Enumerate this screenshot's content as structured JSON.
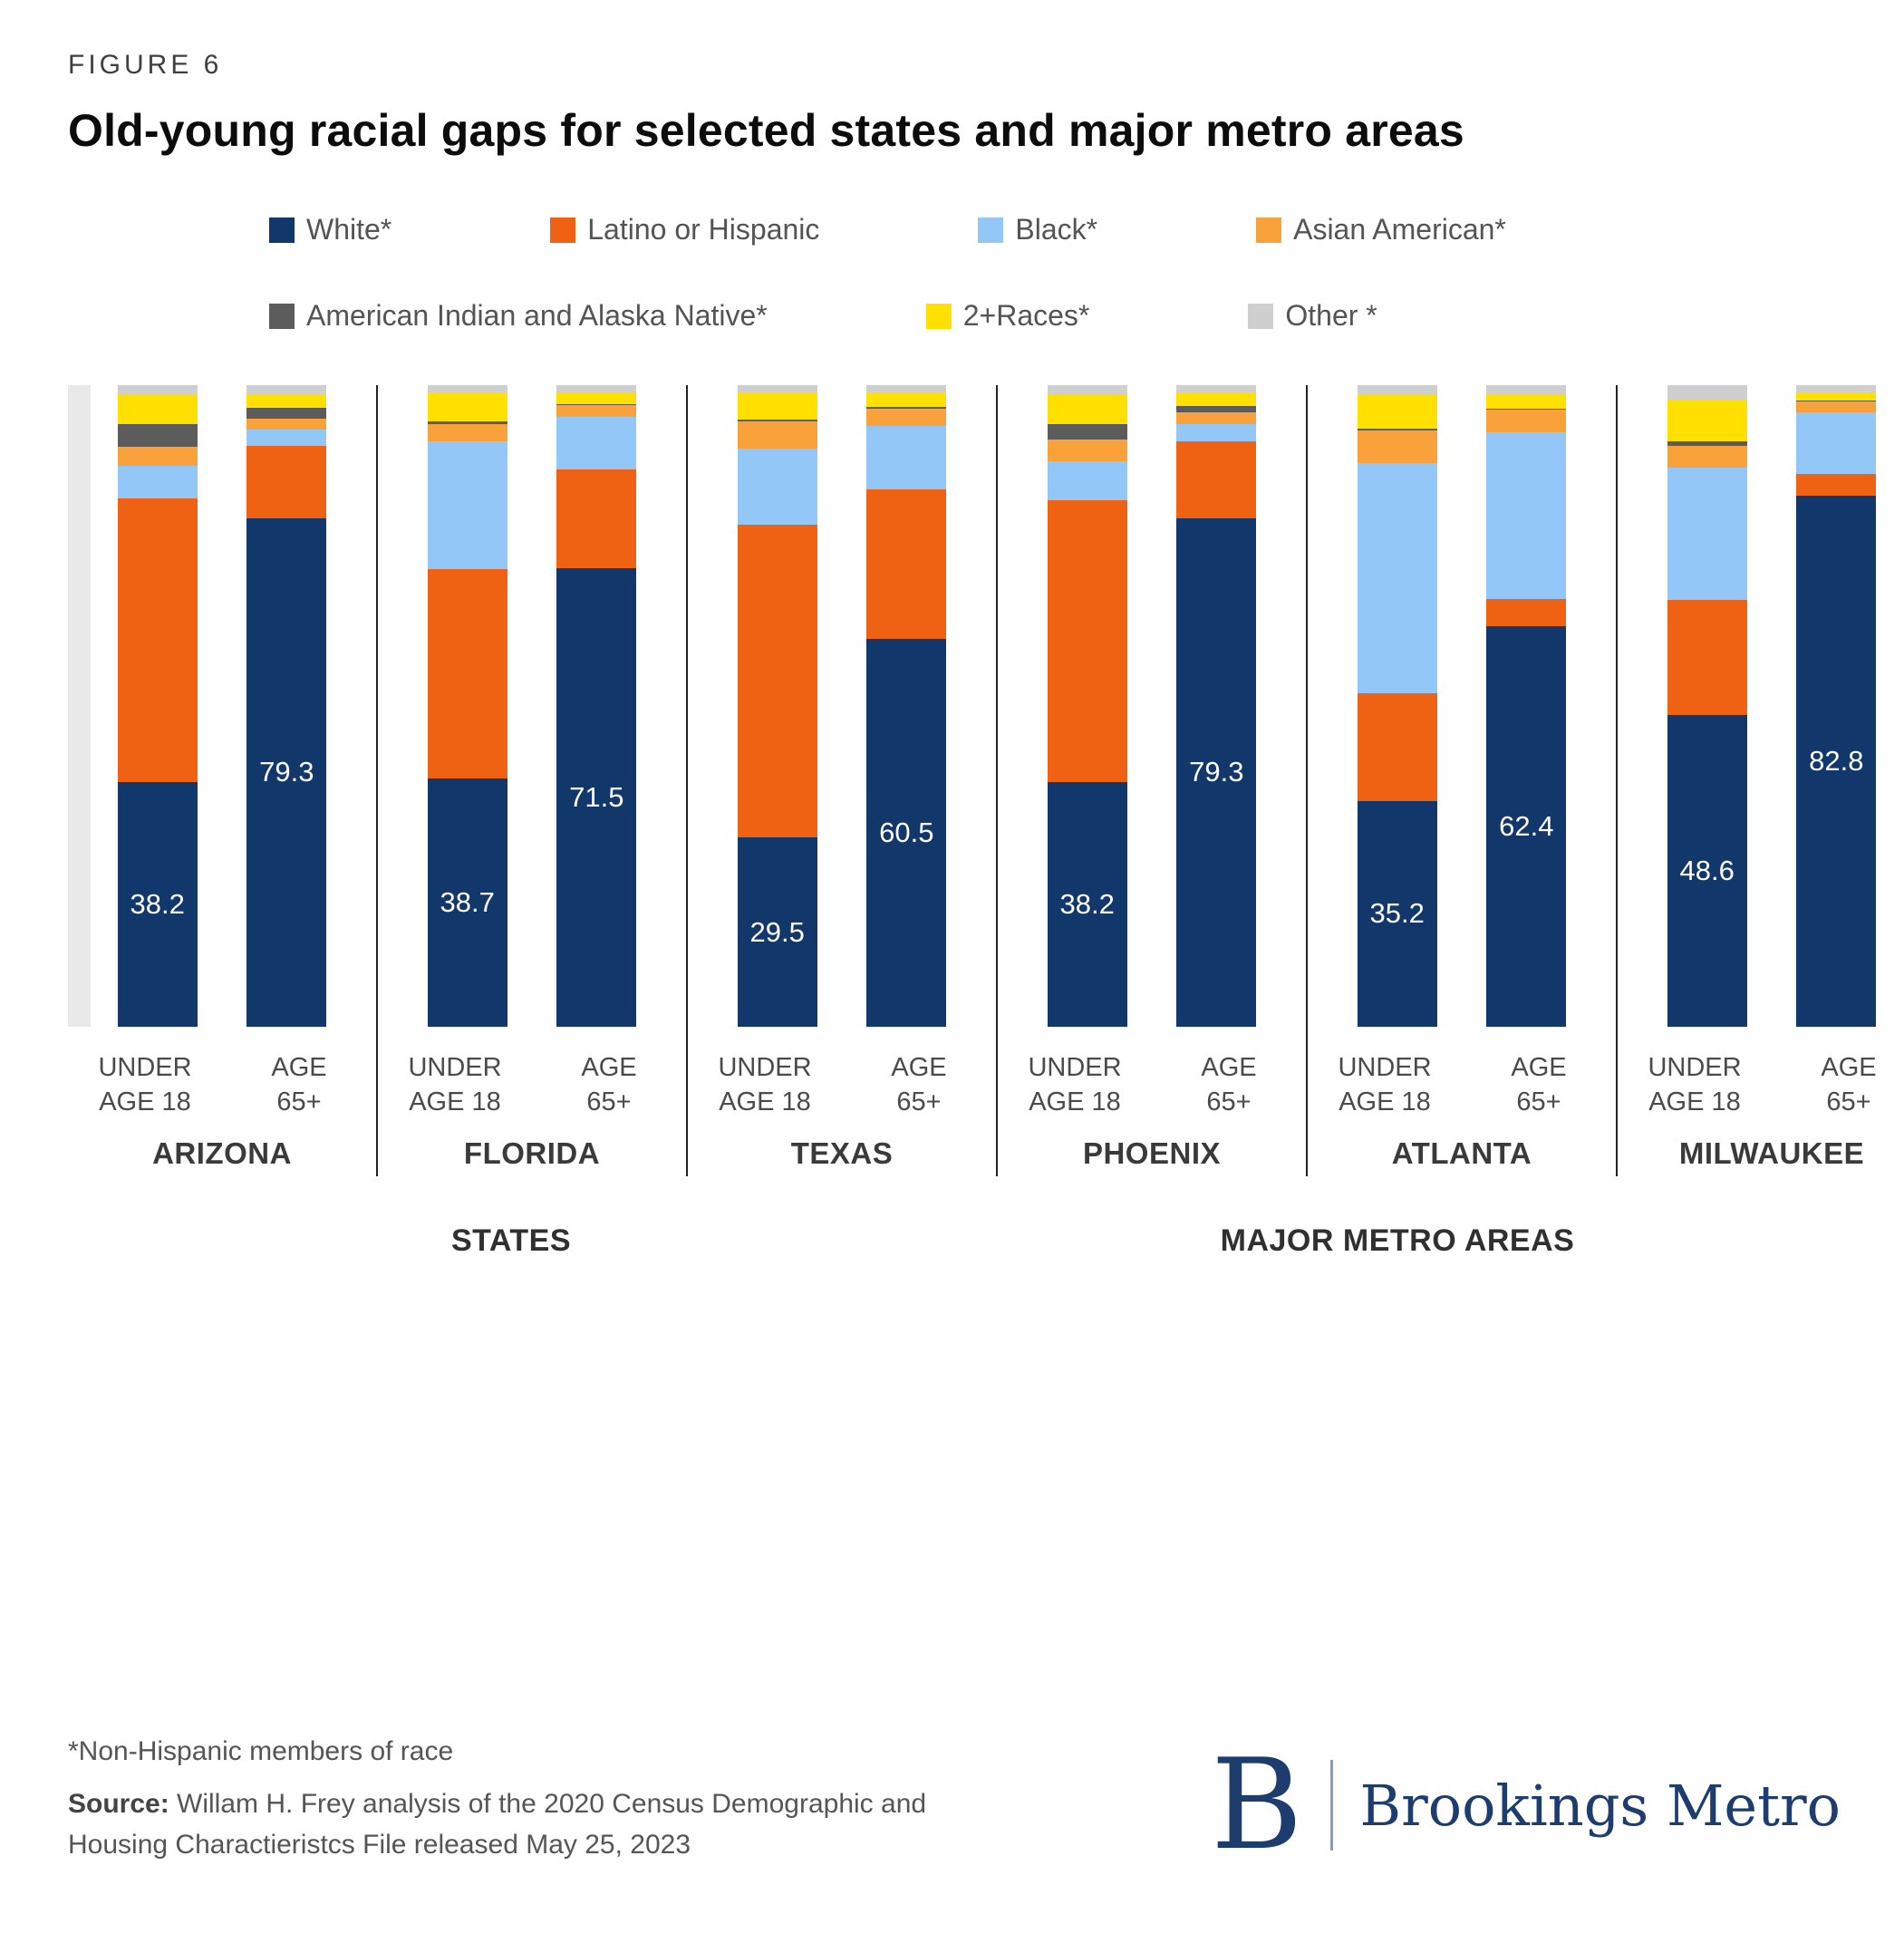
{
  "figure_label": "FIGURE 6",
  "title": "Old-young racial gaps for selected states and major metro areas",
  "footnote": "*Non-Hispanic members of race",
  "source_label": "Source:",
  "source_text": " Willam H. Frey analysis of the 2020 Census Demographic and Housing Charactieristcs File released May 25, 2023",
  "logo": {
    "mark": "B",
    "name": "Brookings Metro"
  },
  "chart_data": {
    "type": "bar",
    "stacked": true,
    "ylim": [
      0,
      100
    ],
    "grid": false,
    "legend_position": "top",
    "series": [
      {
        "name": "White*",
        "color": "#12386b"
      },
      {
        "name": "Latino or Hispanic",
        "color": "#ef6213"
      },
      {
        "name": "Black*",
        "color": "#92c7f8"
      },
      {
        "name": "Asian American*",
        "color": "#f9a13b"
      },
      {
        "name": "American Indian and Alaska Native*",
        "color": "#5c5c5c"
      },
      {
        "name": "2+Races*",
        "color": "#ffe000"
      },
      {
        "name": "Other *",
        "color": "#cfcfcf"
      }
    ],
    "legend_rows": [
      [
        0,
        1,
        2,
        3
      ],
      [
        4,
        5,
        6
      ]
    ],
    "sections": [
      {
        "label": "STATES",
        "groups": [
          "ARIZONA",
          "FLORIDA",
          "TEXAS"
        ]
      },
      {
        "label": "MAJOR METRO AREAS",
        "groups": [
          "PHOENIX",
          "ATLANTA",
          "MILWAUKEE"
        ]
      }
    ],
    "groups": [
      {
        "name": "ARIZONA",
        "bars": [
          {
            "tick": [
              "UNDER",
              "AGE 18"
            ],
            "label": "38.2",
            "values": [
              38.2,
              44.2,
              5.0,
              3.0,
              3.6,
              4.5,
              1.5
            ]
          },
          {
            "tick": [
              "AGE",
              "65+"
            ],
            "label": "79.3",
            "values": [
              79.3,
              11.3,
              2.5,
              1.7,
              1.7,
              2.0,
              1.5
            ]
          }
        ]
      },
      {
        "name": "FLORIDA",
        "bars": [
          {
            "tick": [
              "UNDER",
              "AGE 18"
            ],
            "label": "38.7",
            "values": [
              38.7,
              32.6,
              20.0,
              2.7,
              0.4,
              4.4,
              1.2
            ]
          },
          {
            "tick": [
              "AGE",
              "65+"
            ],
            "label": "71.5",
            "values": [
              71.5,
              15.4,
              8.2,
              1.8,
              0.2,
              1.7,
              1.2
            ]
          }
        ]
      },
      {
        "name": "TEXAS",
        "bars": [
          {
            "tick": [
              "UNDER",
              "AGE 18"
            ],
            "label": "29.5",
            "values": [
              29.5,
              48.8,
              11.8,
              4.3,
              0.3,
              4.2,
              1.1
            ]
          },
          {
            "tick": [
              "AGE",
              "65+"
            ],
            "label": "60.5",
            "values": [
              60.5,
              23.2,
              10.0,
              2.6,
              0.3,
              2.2,
              1.2
            ]
          }
        ]
      },
      {
        "name": "PHOENIX",
        "bars": [
          {
            "tick": [
              "UNDER",
              "AGE 18"
            ],
            "label": "38.2",
            "values": [
              38.2,
              43.8,
              6.2,
              3.4,
              2.4,
              4.5,
              1.5
            ]
          },
          {
            "tick": [
              "AGE",
              "65+"
            ],
            "label": "79.3",
            "values": [
              79.3,
              12.0,
              2.7,
              1.8,
              1.0,
              2.0,
              1.2
            ]
          }
        ]
      },
      {
        "name": "ATLANTA",
        "bars": [
          {
            "tick": [
              "UNDER",
              "AGE 18"
            ],
            "label": "35.2",
            "values": [
              35.2,
              16.8,
              35.8,
              5.2,
              0.2,
              5.4,
              1.4
            ]
          },
          {
            "tick": [
              "AGE",
              "65+"
            ],
            "label": "62.4",
            "values": [
              62.4,
              4.2,
              26.0,
              3.6,
              0.2,
              2.2,
              1.4
            ]
          }
        ]
      },
      {
        "name": "MILWAUKEE",
        "bars": [
          {
            "tick": [
              "UNDER",
              "AGE 18"
            ],
            "label": "48.6",
            "values": [
              48.6,
              17.9,
              20.7,
              3.3,
              0.7,
              6.6,
              2.2
            ]
          },
          {
            "tick": [
              "AGE",
              "65+"
            ],
            "label": "82.8",
            "values": [
              82.8,
              3.4,
              9.6,
              1.6,
              0.2,
              1.2,
              1.2
            ]
          }
        ]
      }
    ]
  }
}
